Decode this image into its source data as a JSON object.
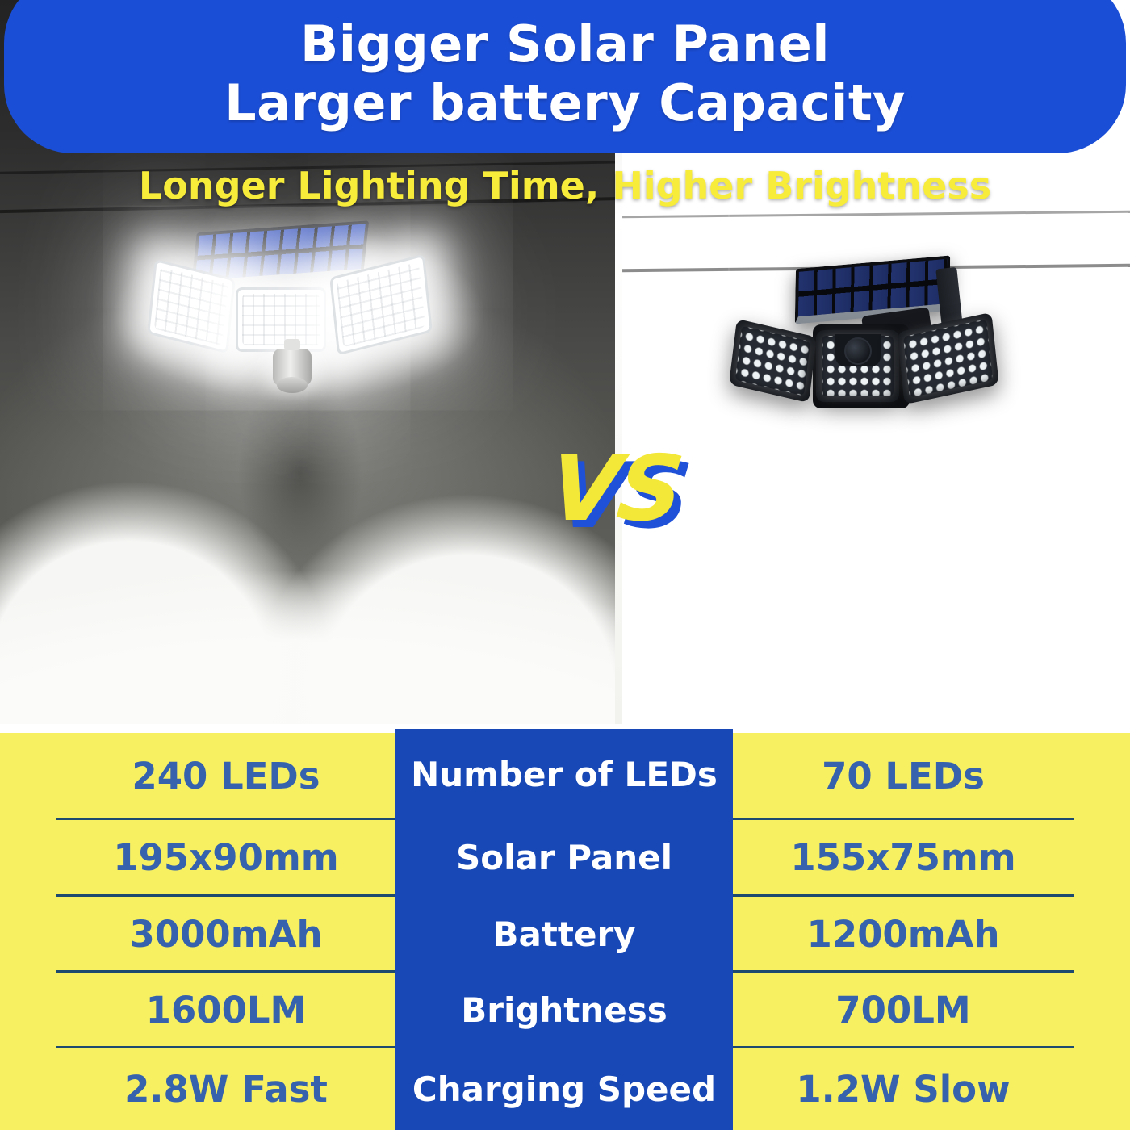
{
  "header": {
    "title_line1": "Bigger Solar Panel",
    "title_line2": "Larger battery Capacity",
    "subtitle": "Longer Lighting Time, Higher Brightness"
  },
  "vs_label": "VS",
  "comparison": {
    "rows": [
      {
        "left": "240 LEDs",
        "label": "Number of LEDs",
        "right": "70 LEDs"
      },
      {
        "left": "195x90mm",
        "label": "Solar Panel",
        "right": "155x75mm"
      },
      {
        "left": "3000mAh",
        "label": "Battery",
        "right": "1200mAh"
      },
      {
        "left": "1600LM",
        "label": "Brightness",
        "right": "700LM"
      },
      {
        "left": "2.8W Fast",
        "label": "Charging Speed",
        "right": "1.2W Slow"
      }
    ]
  },
  "colors": {
    "banner_blue": "#1b4ed6",
    "subtitle_yellow": "#f8ec3a",
    "vs_yellow": "#f3e838",
    "vs_shadow_blue": "#1e50d8",
    "table_yellow": "#f7f162",
    "table_center_blue": "#1748b5",
    "value_text_blue": "#3561ad",
    "row_divider_navy": "#1d4a6e"
  }
}
